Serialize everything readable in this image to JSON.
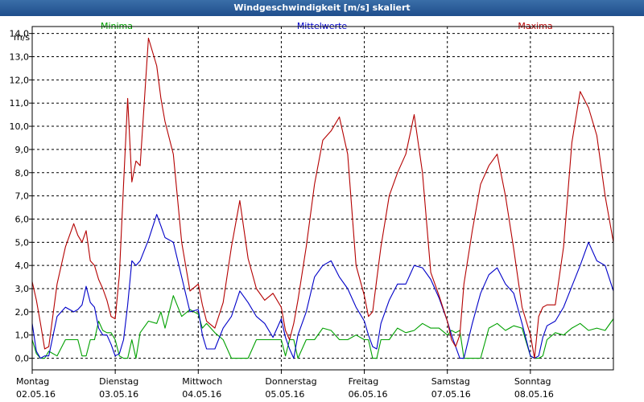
{
  "window": {
    "title": "Windgeschwindigkeit [m/s] skaliert"
  },
  "chart_data": {
    "type": "line",
    "title": "Windgeschwindigkeit [m/s] skaliert",
    "ylabel": "m/s",
    "ylim": [
      -0.5,
      14.3
    ],
    "yticks": [
      0,
      1,
      2,
      3,
      4,
      5,
      6,
      7,
      8,
      9,
      10,
      11,
      12,
      13,
      14
    ],
    "ytick_labels": [
      "0,0",
      "1,0",
      "2,0",
      "3,0",
      "4,0",
      "5,0",
      "6,0",
      "7,0",
      "8,0",
      "9,0",
      "10,0",
      "11,0",
      "12,0",
      "13,0",
      "14,0"
    ],
    "xlim": [
      0,
      7
    ],
    "days": [
      {
        "day": "Montag",
        "date": "02.05.16",
        "x": 0
      },
      {
        "day": "Dienstag",
        "date": "03.05.16",
        "x": 1
      },
      {
        "day": "Mittwoch",
        "date": "04.05.16",
        "x": 2
      },
      {
        "day": "Donnerstag",
        "date": "05.05.16",
        "x": 3
      },
      {
        "day": "Freitag",
        "date": "06.05.16",
        "x": 4
      },
      {
        "day": "Samstag",
        "date": "07.05.16",
        "x": 5
      },
      {
        "day": "Sonntag",
        "date": "08.05.16",
        "x": 6
      }
    ],
    "grid": true,
    "legend_position": "top",
    "series": [
      {
        "name": "Minima",
        "color": "#00a000",
        "x": [
          0,
          0.05,
          0.1,
          0.15,
          0.2,
          0.3,
          0.4,
          0.5,
          0.55,
          0.6,
          0.65,
          0.7,
          0.75,
          0.8,
          0.85,
          0.9,
          0.95,
          1.0,
          1.05,
          1.1,
          1.15,
          1.2,
          1.25,
          1.3,
          1.4,
          1.5,
          1.55,
          1.6,
          1.7,
          1.8,
          1.9,
          2.0,
          2.05,
          2.1,
          2.2,
          2.3,
          2.4,
          2.5,
          2.6,
          2.7,
          2.8,
          2.9,
          3.0,
          3.05,
          3.1,
          3.15,
          3.2,
          3.3,
          3.4,
          3.5,
          3.6,
          3.7,
          3.8,
          3.9,
          4.0,
          4.05,
          4.1,
          4.15,
          4.2,
          4.3,
          4.4,
          4.5,
          4.6,
          4.7,
          4.8,
          4.9,
          5.0,
          5.05,
          5.1,
          5.15,
          5.2,
          5.3,
          5.4,
          5.5,
          5.6,
          5.7,
          5.8,
          5.9,
          6.0,
          6.05,
          6.1,
          6.15,
          6.2,
          6.3,
          6.4,
          6.5,
          6.6,
          6.7,
          6.8,
          6.9,
          7.0
        ],
        "values": [
          0.8,
          0.2,
          0,
          0,
          0.3,
          0.1,
          0.8,
          0.8,
          0.8,
          0.1,
          0.1,
          0.8,
          0.8,
          1.6,
          1.2,
          1.1,
          1.1,
          0.8,
          0.1,
          0,
          0,
          0.8,
          0,
          1.1,
          1.6,
          1.5,
          2.0,
          1.3,
          2.7,
          1.8,
          2.1,
          1.9,
          1.3,
          1.5,
          1.1,
          0.8,
          0,
          0,
          0,
          0.8,
          0.8,
          0.8,
          0.8,
          0.1,
          0.8,
          0.8,
          0,
          0.8,
          0.8,
          1.3,
          1.2,
          0.8,
          0.8,
          1.0,
          0.8,
          0.8,
          0,
          0,
          0.8,
          0.8,
          1.3,
          1.1,
          1.2,
          1.5,
          1.3,
          1.3,
          1.0,
          1.2,
          1.1,
          1.2,
          0,
          0,
          0,
          1.3,
          1.5,
          1.2,
          1.4,
          1.3,
          0.1,
          0,
          0,
          0.1,
          0.8,
          1.1,
          1.0,
          1.3,
          1.5,
          1.2,
          1.3,
          1.2,
          1.7
        ]
      },
      {
        "name": "Mittelwerte",
        "color": "#0000c8",
        "x": [
          0,
          0.05,
          0.1,
          0.15,
          0.2,
          0.3,
          0.4,
          0.5,
          0.55,
          0.6,
          0.65,
          0.7,
          0.75,
          0.8,
          0.85,
          0.9,
          0.95,
          1.0,
          1.05,
          1.1,
          1.15,
          1.2,
          1.25,
          1.3,
          1.4,
          1.5,
          1.55,
          1.6,
          1.7,
          1.8,
          1.9,
          2.0,
          2.05,
          2.1,
          2.2,
          2.3,
          2.4,
          2.5,
          2.6,
          2.7,
          2.8,
          2.9,
          3.0,
          3.05,
          3.1,
          3.15,
          3.2,
          3.3,
          3.4,
          3.5,
          3.6,
          3.7,
          3.8,
          3.9,
          4.0,
          4.05,
          4.1,
          4.15,
          4.2,
          4.3,
          4.4,
          4.5,
          4.6,
          4.7,
          4.8,
          4.9,
          5.0,
          5.05,
          5.1,
          5.15,
          5.2,
          5.3,
          5.4,
          5.5,
          5.6,
          5.7,
          5.8,
          5.9,
          6.0,
          6.05,
          6.1,
          6.15,
          6.2,
          6.3,
          6.4,
          6.5,
          6.6,
          6.7,
          6.8,
          6.9,
          7.0
        ],
        "values": [
          1.5,
          0.3,
          0,
          0.1,
          0.1,
          1.8,
          2.2,
          2.0,
          2.1,
          2.3,
          3.1,
          2.4,
          2.2,
          1.3,
          1.0,
          1.0,
          0.6,
          0.1,
          0.2,
          0.8,
          2.3,
          4.2,
          4.0,
          4.2,
          5.1,
          6.2,
          5.7,
          5.2,
          5.0,
          3.5,
          2.0,
          2.1,
          1.0,
          0.4,
          0.4,
          1.3,
          1.8,
          2.9,
          2.4,
          1.8,
          1.5,
          0.9,
          1.7,
          0.9,
          0.4,
          0,
          1.0,
          2.0,
          3.5,
          4.0,
          4.2,
          3.5,
          3.0,
          2.2,
          1.6,
          1.0,
          0.5,
          0.4,
          1.5,
          2.5,
          3.2,
          3.2,
          4.0,
          3.9,
          3.4,
          2.6,
          1.6,
          1.0,
          0.5,
          0,
          0,
          1.5,
          2.8,
          3.6,
          3.9,
          3.2,
          2.8,
          1.5,
          0.1,
          0,
          0.1,
          0.9,
          1.4,
          1.6,
          2.2,
          3.1,
          4.0,
          5.0,
          4.2,
          4.0,
          2.9
        ]
      },
      {
        "name": "Maxima",
        "color": "#b40000",
        "x": [
          0,
          0.05,
          0.1,
          0.15,
          0.2,
          0.3,
          0.4,
          0.5,
          0.55,
          0.6,
          0.65,
          0.7,
          0.75,
          0.8,
          0.85,
          0.9,
          0.95,
          1.0,
          1.05,
          1.1,
          1.15,
          1.2,
          1.25,
          1.3,
          1.4,
          1.5,
          1.55,
          1.6,
          1.7,
          1.8,
          1.9,
          2.0,
          2.05,
          2.1,
          2.2,
          2.3,
          2.4,
          2.5,
          2.6,
          2.7,
          2.8,
          2.9,
          3.0,
          3.05,
          3.1,
          3.15,
          3.2,
          3.3,
          3.4,
          3.5,
          3.6,
          3.7,
          3.8,
          3.9,
          4.0,
          4.05,
          4.1,
          4.15,
          4.2,
          4.3,
          4.4,
          4.5,
          4.6,
          4.7,
          4.8,
          4.9,
          5.0,
          5.05,
          5.1,
          5.15,
          5.2,
          5.3,
          5.4,
          5.5,
          5.6,
          5.7,
          5.8,
          5.9,
          6.0,
          6.05,
          6.1,
          6.15,
          6.2,
          6.3,
          6.4,
          6.5,
          6.6,
          6.7,
          6.8,
          6.9,
          7.0
        ],
        "values": [
          3.3,
          2.5,
          1.5,
          0.4,
          0.5,
          3.2,
          4.8,
          5.8,
          5.3,
          5.0,
          5.5,
          4.2,
          4.0,
          3.4,
          3.0,
          2.5,
          1.8,
          1.7,
          3.6,
          7.5,
          11.2,
          7.6,
          8.5,
          8.3,
          13.8,
          12.6,
          11.2,
          10.2,
          8.8,
          5.0,
          2.9,
          3.2,
          2.3,
          1.6,
          1.3,
          2.4,
          4.8,
          6.8,
          4.3,
          3.0,
          2.5,
          2.8,
          2.2,
          1.2,
          0.8,
          1.5,
          2.5,
          4.8,
          7.5,
          9.4,
          9.8,
          10.4,
          8.8,
          4.0,
          2.7,
          1.8,
          2.0,
          3.4,
          4.8,
          7.0,
          8.0,
          8.8,
          10.5,
          8.0,
          3.7,
          2.7,
          1.6,
          0.8,
          0.5,
          1.0,
          3.2,
          5.5,
          7.5,
          8.3,
          8.8,
          7.0,
          4.7,
          2.2,
          1.0,
          0,
          1.8,
          2.2,
          2.3,
          2.3,
          4.8,
          9.3,
          11.5,
          10.8,
          9.6,
          7.0,
          5.0
        ]
      }
    ]
  }
}
